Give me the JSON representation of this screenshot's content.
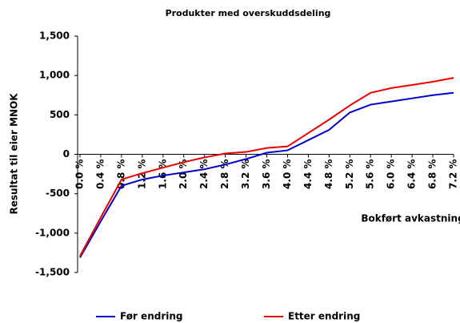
{
  "chart_data": {
    "type": "line",
    "title": "Produkter med overskuddsdeling",
    "x_label": "Bokført avkastning",
    "y_label": "Resultat til eier MNOK",
    "categories": [
      "0.0 %",
      "0.4 %",
      "0.8 %",
      "1.2 %",
      "1.6 %",
      "2.0 %",
      "2.4 %",
      "2.8 %",
      "3.2 %",
      "3.6 %",
      "4.0 %",
      "4.4 %",
      "4.8 %",
      "5.2 %",
      "5.6 %",
      "6.0 %",
      "6.4 %",
      "6.8 %",
      "7.2 %"
    ],
    "series": [
      {
        "name": "Før endring",
        "color": "#0000cc",
        "values": [
          -1310,
          -850,
          -400,
          -320,
          -270,
          -230,
          -190,
          -130,
          -60,
          20,
          50,
          180,
          310,
          530,
          630,
          670,
          710,
          750,
          780
        ]
      },
      {
        "name": "Etter endring",
        "color": "#ee0000",
        "values": [
          -1290,
          -800,
          -320,
          -240,
          -170,
          -100,
          -40,
          10,
          30,
          80,
          100,
          270,
          440,
          620,
          780,
          840,
          880,
          920,
          970
        ]
      }
    ],
    "ylim": [
      -1500,
      1500
    ],
    "yticks": [
      {
        "value": 1500,
        "label": "1,500"
      },
      {
        "value": 1000,
        "label": "1,000"
      },
      500,
      0,
      -500,
      {
        "value": -1000,
        "label": "-1,000"
      },
      {
        "value": -1500,
        "label": "-1,500"
      }
    ],
    "grid": false,
    "legend": "bottom"
  }
}
